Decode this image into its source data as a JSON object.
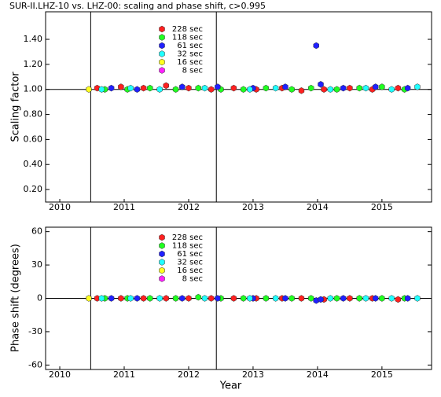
{
  "chart_data": [
    {
      "type": "scatter",
      "title": "SUR-II.LHZ-10 vs. LHZ-00: scaling and phase shift, c>0.995",
      "y_label": "Scaling factor",
      "xlim": [
        2009.78,
        2015.77
      ],
      "xticks": [
        2010,
        2011,
        2012,
        2013,
        2014,
        2015
      ],
      "ylim": [
        0.1,
        1.62
      ],
      "yticks": [
        {
          "value": 0.2,
          "label": "0.20"
        },
        {
          "value": 0.4,
          "label": "0.40"
        },
        {
          "value": 0.6,
          "label": "0.60"
        },
        {
          "value": 0.8,
          "label": "0.80"
        },
        {
          "value": 1.0,
          "label": "1.00"
        },
        {
          "value": 1.2,
          "label": "1.20"
        },
        {
          "value": 1.4,
          "label": "1.40"
        }
      ],
      "reference_line": 1.0,
      "vlines": [
        2010.48,
        2012.43
      ],
      "series": [
        {
          "name": "228 sec",
          "color": "#ff2020",
          "x": [
            2010.58,
            2010.95,
            2011.3,
            2011.65,
            2012.0,
            2012.35,
            2012.7,
            2013.05,
            2013.45,
            2013.75,
            2014.1,
            2014.5,
            2014.85,
            2015.25
          ],
          "values": [
            1.01,
            1.02,
            1.01,
            1.03,
            1.01,
            1.0,
            1.01,
            1.0,
            1.01,
            0.99,
            1.0,
            1.01,
            1.0,
            1.01
          ]
        },
        {
          "name": "118 sec",
          "color": "#20ff20",
          "x": [
            2010.7,
            2011.05,
            2011.4,
            2011.8,
            2012.15,
            2012.5,
            2012.85,
            2013.2,
            2013.6,
            2013.9,
            2014.3,
            2014.65,
            2015.0,
            2015.35
          ],
          "values": [
            1.0,
            1.0,
            1.01,
            1.0,
            1.01,
            1.0,
            1.0,
            1.01,
            1.0,
            1.01,
            1.0,
            1.01,
            1.02,
            1.0
          ]
        },
        {
          "name": "61 sec",
          "color": "#2020ff",
          "x": [
            2010.8,
            2011.2,
            2011.9,
            2012.45,
            2013.0,
            2013.5,
            2013.98,
            2014.05,
            2014.4,
            2014.9,
            2015.4
          ],
          "values": [
            1.01,
            1.0,
            1.02,
            1.02,
            1.01,
            1.02,
            1.35,
            1.04,
            1.01,
            1.02,
            1.01
          ]
        },
        {
          "name": "32 sec",
          "color": "#20ffff",
          "x": [
            2010.65,
            2011.1,
            2011.55,
            2012.25,
            2012.95,
            2013.35,
            2014.2,
            2014.75,
            2015.15,
            2015.55
          ],
          "values": [
            1.0,
            1.01,
            1.0,
            1.01,
            1.0,
            1.01,
            1.0,
            1.01,
            1.0,
            1.02
          ]
        },
        {
          "name": "16 sec",
          "color": "#ffff20",
          "x": [
            2010.45
          ],
          "values": [
            1.0
          ]
        },
        {
          "name": "8 sec",
          "color": "#ff20ff",
          "x": [],
          "values": []
        }
      ]
    },
    {
      "type": "scatter",
      "y_label": "Phase shift (degrees)",
      "x_label": "Year",
      "xlim": [
        2009.78,
        2015.77
      ],
      "xticks": [
        2010,
        2011,
        2012,
        2013,
        2014,
        2015
      ],
      "ylim": [
        -64,
        64
      ],
      "yticks": [
        -60,
        -30,
        0,
        30,
        60
      ],
      "reference_line": 0,
      "vlines": [
        2010.48,
        2012.43
      ],
      "series": [
        {
          "name": "228 sec",
          "color": "#ff2020",
          "x": [
            2010.58,
            2010.95,
            2011.3,
            2011.65,
            2012.0,
            2012.35,
            2012.7,
            2013.05,
            2013.45,
            2013.75,
            2014.1,
            2014.5,
            2014.85,
            2015.25
          ],
          "values": [
            0,
            0,
            0,
            0,
            0,
            0,
            0,
            0,
            0,
            0,
            -1,
            0,
            0,
            -1
          ]
        },
        {
          "name": "118 sec",
          "color": "#20ff20",
          "x": [
            2010.7,
            2011.05,
            2011.4,
            2011.8,
            2012.15,
            2012.5,
            2012.85,
            2013.2,
            2013.6,
            2013.9,
            2014.3,
            2014.65,
            2015.0,
            2015.35
          ],
          "values": [
            0,
            0,
            0,
            0,
            1,
            0,
            0,
            0,
            0,
            0,
            0,
            0,
            0,
            0
          ]
        },
        {
          "name": "61 sec",
          "color": "#2020ff",
          "x": [
            2010.8,
            2011.2,
            2011.9,
            2012.45,
            2013.0,
            2013.5,
            2013.98,
            2014.05,
            2014.4,
            2014.9,
            2015.4
          ],
          "values": [
            0,
            0,
            0,
            0,
            0,
            0,
            -2,
            -1,
            0,
            0,
            0
          ]
        },
        {
          "name": "32 sec",
          "color": "#20ffff",
          "x": [
            2010.65,
            2011.1,
            2011.55,
            2012.25,
            2012.95,
            2013.35,
            2014.2,
            2014.75,
            2015.15,
            2015.55
          ],
          "values": [
            0,
            0,
            0,
            0,
            0,
            0,
            0,
            0,
            0,
            0
          ]
        },
        {
          "name": "16 sec",
          "color": "#ffff20",
          "x": [
            2010.45
          ],
          "values": [
            0
          ]
        },
        {
          "name": "8 sec",
          "color": "#ff20ff",
          "x": [],
          "values": []
        }
      ]
    }
  ]
}
